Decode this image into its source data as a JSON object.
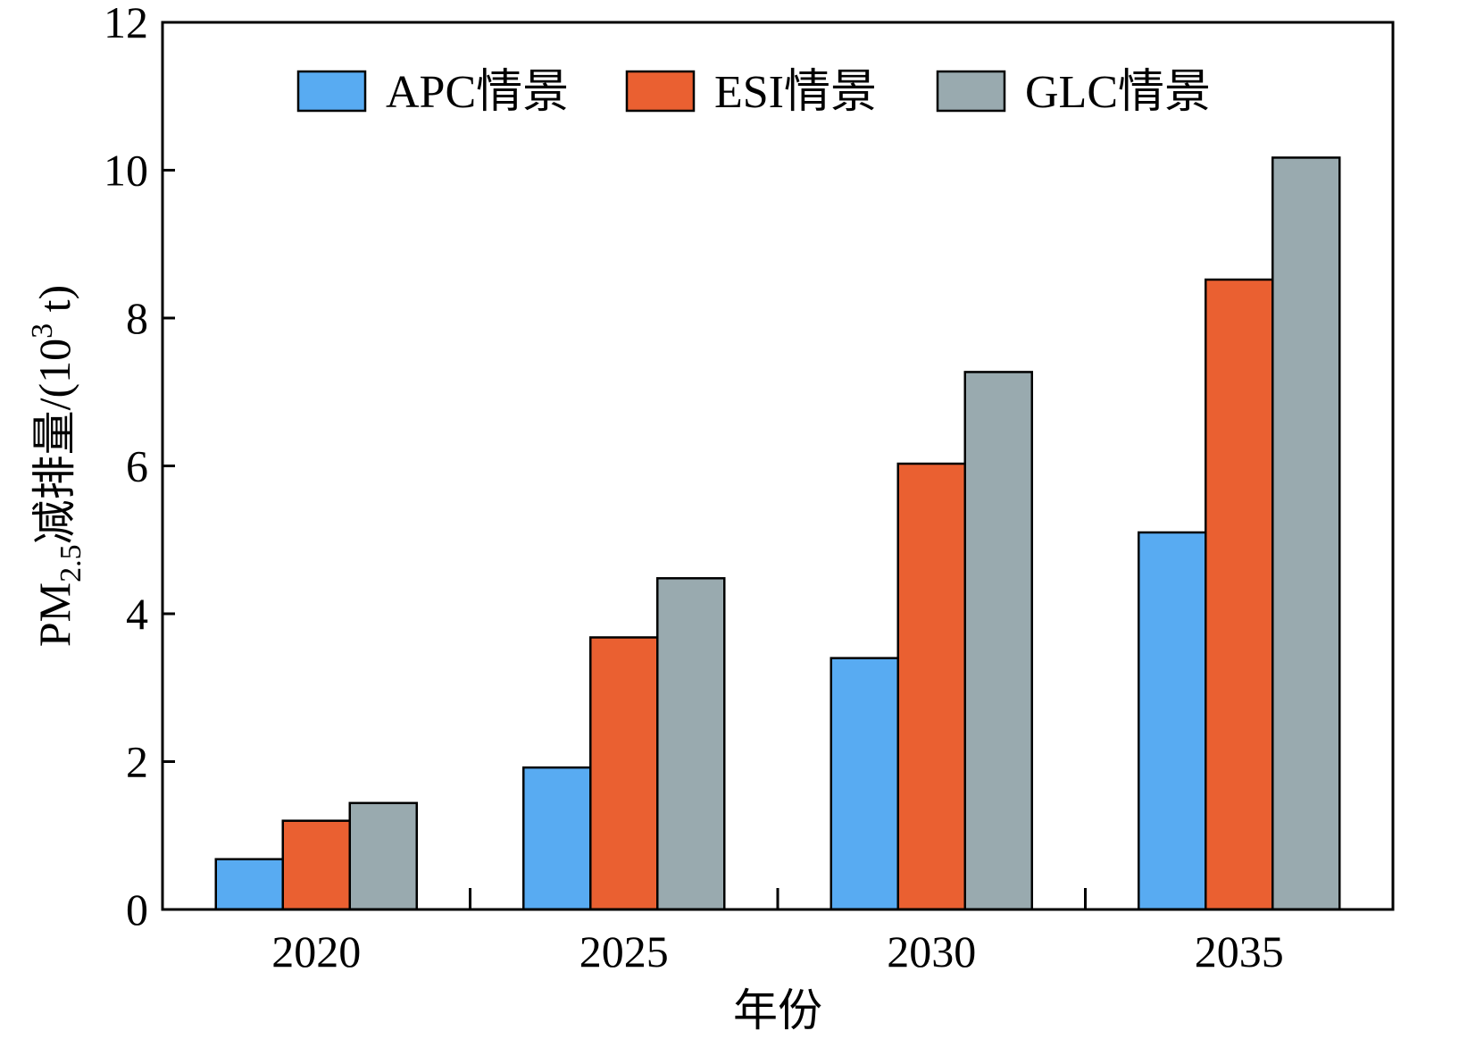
{
  "chart_data": {
    "type": "bar",
    "title": "",
    "xlabel": "年份",
    "ylabel": {
      "main": "PM",
      "sub": "2.5",
      "after": "减排量/(10",
      "sup": "3",
      "end": " t)"
    },
    "categories": [
      "2020",
      "2025",
      "2030",
      "2035"
    ],
    "series": [
      {
        "name": "APC情景",
        "color": "#58ABF2",
        "values": [
          0.68,
          1.92,
          3.4,
          5.1
        ]
      },
      {
        "name": "ESI情景",
        "color": "#EA6031",
        "values": [
          1.2,
          3.68,
          6.03,
          8.52
        ]
      },
      {
        "name": "GLC情景",
        "color": "#99AAAF",
        "values": [
          1.44,
          4.48,
          7.27,
          10.17
        ]
      }
    ],
    "ylim": [
      0,
      12
    ],
    "yticks": [
      "0",
      "2",
      "4",
      "6",
      "8",
      "10",
      "12"
    ],
    "grid": false,
    "legend_position": "top-center"
  }
}
